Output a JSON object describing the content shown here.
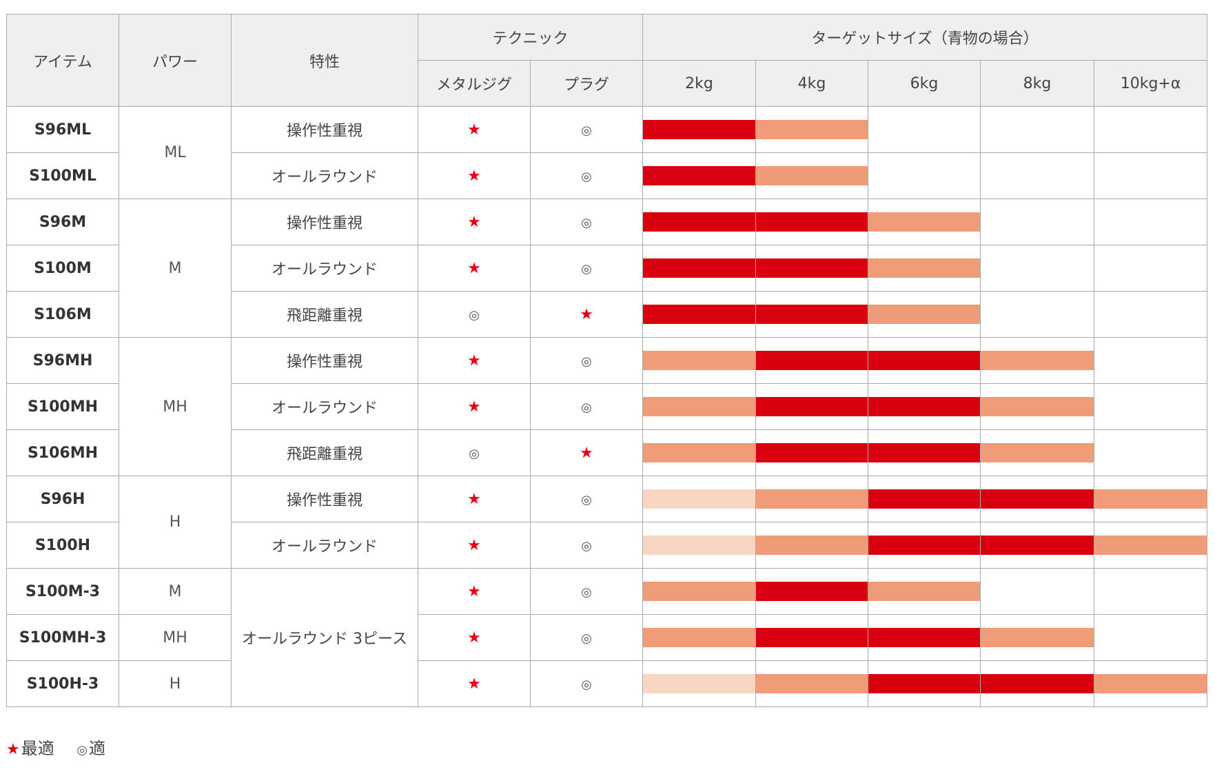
{
  "header": {
    "item": "アイテム",
    "power": "パワー",
    "feature": "特性",
    "technique": "テクニック",
    "metal_jig": "メタルジグ",
    "plug": "プラグ",
    "target": "ターゲットサイズ（青物の場合）",
    "sizes": [
      "2kg",
      "4kg",
      "6kg",
      "8kg",
      "10kg+α"
    ]
  },
  "symbols": {
    "best": "★",
    "good": "◎"
  },
  "level_colors": {
    "0": "",
    "1": "#f8cfb8",
    "2": "#f19c79",
    "3": "#d9000f"
  },
  "power_groups": [
    {
      "label": "ML",
      "span": 2
    },
    {
      "label": "M",
      "span": 3
    },
    {
      "label": "MH",
      "span": 3
    },
    {
      "label": "H",
      "span": 2
    },
    {
      "label": "M",
      "span": 1
    },
    {
      "label": "MH",
      "span": 1
    },
    {
      "label": "H",
      "span": 1
    }
  ],
  "feature_groups": [
    {
      "label": "操作性重視",
      "span": 1
    },
    {
      "label": "オールラウンド",
      "span": 1
    },
    {
      "label": "操作性重視",
      "span": 1
    },
    {
      "label": "オールラウンド",
      "span": 1
    },
    {
      "label": "飛距離重視",
      "span": 1
    },
    {
      "label": "操作性重視",
      "span": 1
    },
    {
      "label": "オールラウンド",
      "span": 1
    },
    {
      "label": "飛距離重視",
      "span": 1
    },
    {
      "label": "操作性重視",
      "span": 1
    },
    {
      "label": "オールラウンド",
      "span": 1
    },
    {
      "label": "オールラウンド 3ピース",
      "span": 3
    }
  ],
  "rows": [
    {
      "item": "S96ML",
      "metal_jig": "★",
      "plug": "◎",
      "target_levels": [
        3,
        2,
        0,
        0,
        0
      ]
    },
    {
      "item": "S100ML",
      "metal_jig": "★",
      "plug": "◎",
      "target_levels": [
        3,
        2,
        0,
        0,
        0
      ]
    },
    {
      "item": "S96M",
      "metal_jig": "★",
      "plug": "◎",
      "target_levels": [
        3,
        3,
        2,
        0,
        0
      ]
    },
    {
      "item": "S100M",
      "metal_jig": "★",
      "plug": "◎",
      "target_levels": [
        3,
        3,
        2,
        0,
        0
      ]
    },
    {
      "item": "S106M",
      "metal_jig": "◎",
      "plug": "★",
      "target_levels": [
        3,
        3,
        2,
        0,
        0
      ]
    },
    {
      "item": "S96MH",
      "metal_jig": "★",
      "plug": "◎",
      "target_levels": [
        2,
        3,
        3,
        2,
        0
      ]
    },
    {
      "item": "S100MH",
      "metal_jig": "★",
      "plug": "◎",
      "target_levels": [
        2,
        3,
        3,
        2,
        0
      ]
    },
    {
      "item": "S106MH",
      "metal_jig": "◎",
      "plug": "★",
      "target_levels": [
        2,
        3,
        3,
        2,
        0
      ]
    },
    {
      "item": "S96H",
      "metal_jig": "★",
      "plug": "◎",
      "target_levels": [
        1,
        2,
        3,
        3,
        2
      ]
    },
    {
      "item": "S100H",
      "metal_jig": "★",
      "plug": "◎",
      "target_levels": [
        1,
        2,
        3,
        3,
        2
      ]
    },
    {
      "item": "S100M-3",
      "metal_jig": "★",
      "plug": "◎",
      "target_levels": [
        2,
        3,
        2,
        0,
        0
      ]
    },
    {
      "item": "S100MH-3",
      "metal_jig": "★",
      "plug": "◎",
      "target_levels": [
        2,
        3,
        3,
        2,
        0
      ]
    },
    {
      "item": "S100H-3",
      "metal_jig": "★",
      "plug": "◎",
      "target_levels": [
        1,
        2,
        3,
        3,
        2
      ]
    }
  ],
  "legend": {
    "best_symbol": "★",
    "best_label": "最適",
    "good_symbol": "◎",
    "good_label": "適"
  }
}
